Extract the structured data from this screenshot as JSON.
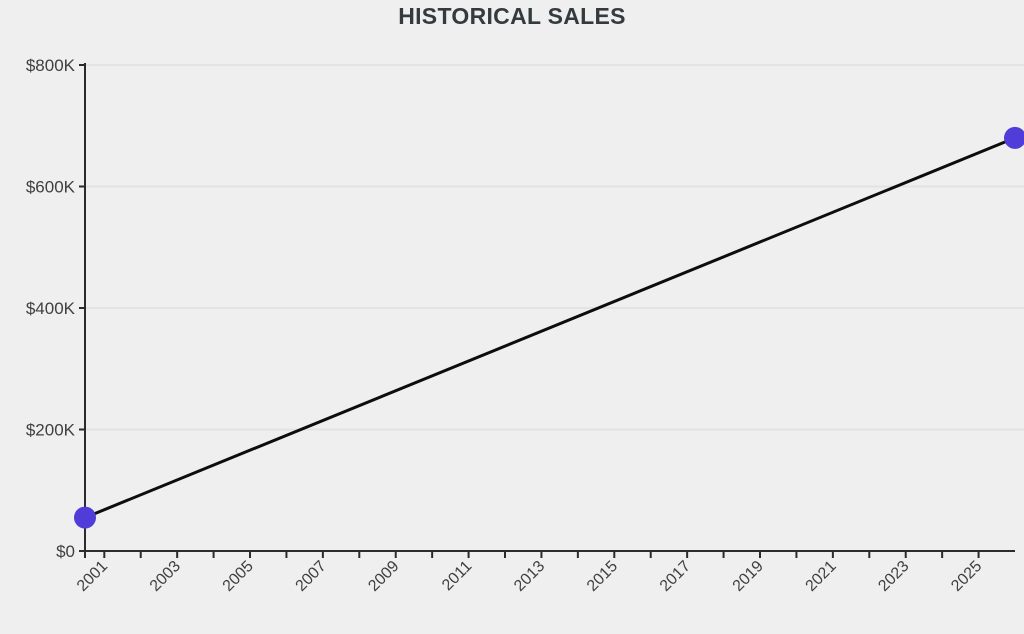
{
  "chart_data": {
    "type": "line",
    "title": "HISTORICAL SALES",
    "series": [
      {
        "name": "historical-sales",
        "points": [
          {
            "year": 2000,
            "value": 55000
          },
          {
            "year": 2026,
            "value": 680000
          }
        ],
        "line_color": "#0d0d0d",
        "marker_color": "#4f3cd9"
      }
    ],
    "y_ticks": [
      {
        "value": 0,
        "label": "$0"
      },
      {
        "value": 200000,
        "label": "$200K"
      },
      {
        "value": 400000,
        "label": "$400K"
      },
      {
        "value": 600000,
        "label": "$600K"
      },
      {
        "value": 800000,
        "label": "$800K"
      }
    ],
    "x_tick_labels": [
      "2001",
      "2003",
      "2005",
      "2007",
      "2009",
      "2011",
      "2013",
      "2015",
      "2017",
      "2019",
      "2021",
      "2023",
      "2025"
    ],
    "x_minor_tick_year_range": [
      2001,
      2025
    ],
    "x_tick_step": 1,
    "xlim": [
      2000.47,
      2026.0
    ],
    "ylim": [
      0,
      800000
    ],
    "grid": "horizontal",
    "legend": "none",
    "x_label_rotation_deg": -45,
    "colors": {
      "background": "#efefef",
      "grid": "#e3e3e3",
      "axis": "#2b2b2b",
      "tick_label": "#3f3f3f",
      "title": "#343b3e"
    }
  }
}
